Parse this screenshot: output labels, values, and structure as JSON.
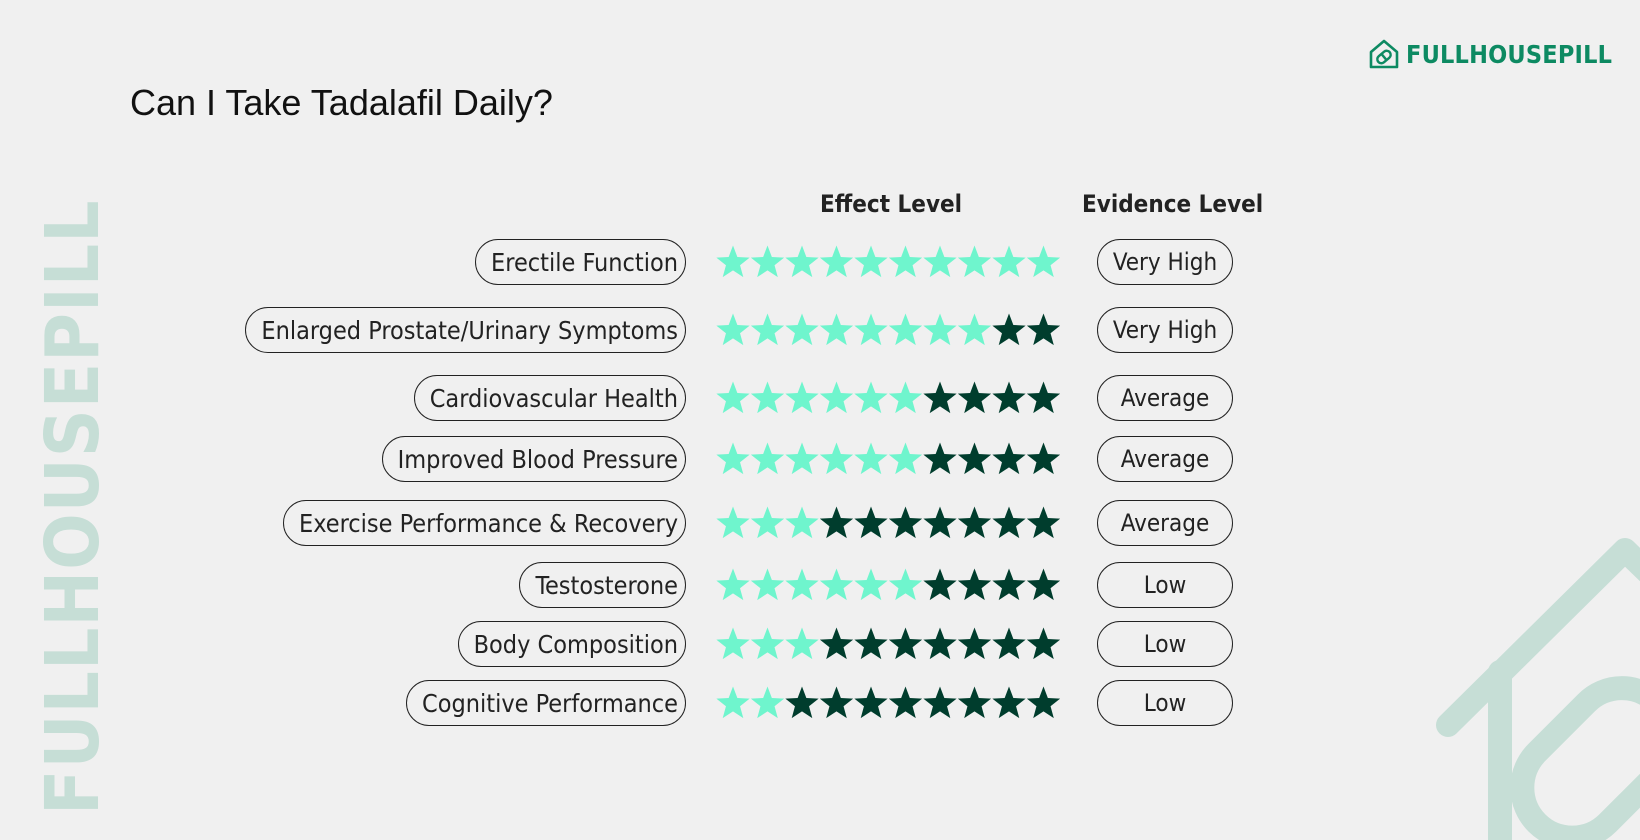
{
  "brand": {
    "name": "FULLHOUSEPILL",
    "icon": "house-pill-icon",
    "color": "#0d8a62"
  },
  "title": "Can I Take Tadalafil Daily?",
  "watermark": "FULLHOUSEPILL",
  "headers": {
    "effect": "Effect Level",
    "evidence": "Evidence Level"
  },
  "colors": {
    "star_filled": "#6ff5cd",
    "star_empty": "#003d2d",
    "accent_deco": "#c6ded6"
  },
  "max_stars": 10,
  "rows": [
    {
      "label": "Erectile Function",
      "effect": 10,
      "evidence": "Very High"
    },
    {
      "label": "Enlarged Prostate/Urinary Symptoms",
      "effect": 8,
      "evidence": "Very High"
    },
    {
      "label": "Cardiovascular Health",
      "effect": 6,
      "evidence": "Average"
    },
    {
      "label": "Improved Blood Pressure",
      "effect": 6,
      "evidence": "Average"
    },
    {
      "label": "Exercise Performance & Recovery",
      "effect": 3,
      "evidence": "Average"
    },
    {
      "label": "Testosterone",
      "effect": 6,
      "evidence": "Low"
    },
    {
      "label": "Body Composition",
      "effect": 3,
      "evidence": "Low"
    },
    {
      "label": "Cognitive Performance",
      "effect": 2,
      "evidence": "Low"
    }
  ]
}
